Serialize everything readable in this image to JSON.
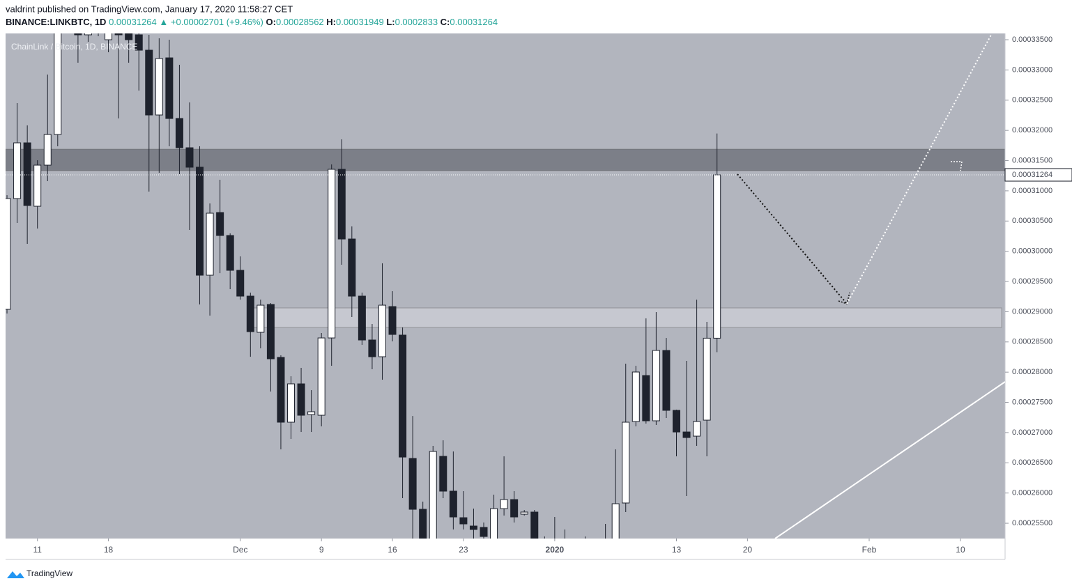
{
  "header": {
    "byline": "valdrint published on TradingView.com, January 17, 2020 11:58:27 CET",
    "symbol": "BINANCE:LINKBTC, 1D",
    "arrow": "▲",
    "change": "+0.00002701 (+9.46%)",
    "o_label": "O:",
    "h_label": "H:",
    "l_label": "L:",
    "c_label": "C:"
  },
  "footer": {
    "brand": "TradingView"
  },
  "chart_data": {
    "type": "candlestick",
    "title": "ChainLink / Bitcoin, 1D, BINANCE",
    "up_color": "#ffffff",
    "down_color": "#1e222d",
    "background": "#b2b5be",
    "open": [
      0.00029039,
      0.00030872,
      0.00031794,
      0.00030745,
      0.00031425,
      0.00031932,
      0.00033754,
      0.00033926,
      0.00033581,
      0.00033811,
      0.000335,
      0.00033811,
      0.00033696,
      0.00033581,
      0.00033327,
      0.00032255,
      0.000332,
      0.00032197,
      0.00031713,
      0.00031391,
      0.00029604,
      0.00030641,
      0.00030261,
      0.00029685,
      0.00029258,
      0.00028659,
      0.0002912,
      0.00028244,
      0.00027172,
      0.00027806,
      0.00027298,
      0.00027287,
      0.00028566,
      0.00031356,
      0.00030203,
      0.00029258,
      0.00028532,
      0.00028255,
      0.00029085,
      0.00028613,
      0.00026572,
      0.00025731,
      0.00025224,
      0.00026607,
      0.00026031,
      0.00025592,
      0.00025454,
      0.00025431,
      0.00025051,
      0.00025742,
      0.00025892,
      0.0002565,
      0.00025685,
      0.00025051,
      0.00024935,
      0.00025166,
      0.00024935,
      0.00025051,
      0.00024935,
      0.00025051,
      0.00025051,
      0.00025835,
      0.00027183,
      0.00027944,
      0.00027195,
      0.00028359,
      0.00027368,
      0.0002701,
      0.00026941,
      0.00027206,
      0.00028562
    ],
    "high": [
      0.00030929,
      0.00032451,
      0.00032082,
      0.00031506,
      0.00032924,
      0.00033984,
      0.00034157,
      0.00034099,
      0.00034042,
      0.00034042,
      0.00033984,
      0.00034042,
      0.00033926,
      0.00033811,
      0.00033581,
      0.00033523,
      0.000335,
      0.00033085,
      0.00032463,
      0.00031736,
      0.00030791,
      0.00031183,
      0.00030296,
      0.00029915,
      0.00029316,
      0.000292,
      0.00029143,
      0.00028278,
      0.00027932,
      0.00028071,
      0.00027702,
      0.00028647,
      0.00031437,
      0.00031852,
      0.00030411,
      0.00029316,
      0.00028797,
      0.000298,
      0.00029339,
      0.00028739,
      0.00027275,
      0.00025858,
      0.0002678,
      0.00026872,
      0.00026688,
      0.00026031,
      0.00025742,
      0.00025512,
      0.00025973,
      0.00026607,
      0.00026031,
      0.00025719,
      0.00025719,
      0.00025281,
      0.00025604,
      0.00025397,
      0.00025189,
      0.00025281,
      0.00025224,
      0.00025489,
      0.00026722,
      0.0002814,
      0.00028105,
      0.00028889,
      0.00028993,
      0.00028566,
      0.00027379,
      0.00028186,
      0.000292,
      0.00028832,
      0.00031949
    ],
    "low": [
      0.0002897,
      0.00030468,
      0.00030123,
      0.00030376,
      0.0003116,
      0.00031736,
      0.00033638,
      0.0003312,
      0.00033465,
      0.00033558,
      0.00033293,
      0.00032197,
      0.0003312,
      0.00032659,
      0.00030987,
      0.00031298,
      0.00031736,
      0.00031275,
      0.00030353,
      0.0002912,
      0.00028935,
      0.00029638,
      0.00029373,
      0.000292,
      0.00028255,
      0.00028394,
      0.00027679,
      0.00026722,
      0.00026895,
      0.0002701,
      0.0002701,
      0.00027103,
      0.00028105,
      0.00029777,
      0.00028912,
      0.00028451,
      0.00028048,
      0.00027875,
      0.00028509,
      0.00025915,
      0.00025247,
      0.00024935,
      0.00025166,
      0.00025915,
      0.00025397,
      0.00025397,
      0.00025247,
      0.00025224,
      0.00024935,
      0.00025627,
      0.00025512,
      0.00025627,
      0.0002482,
      0.00024705,
      0.0002482,
      0.00024705,
      0.0002482,
      0.00024705,
      0.0002482,
      0.00024935,
      0.00024935,
      0.00025685,
      0.00027103,
      0.00027149,
      0.00027126,
      0.00027241,
      0.00026607,
      0.0002595,
      0.0002678,
      0.00026607,
      0.0002833
    ],
    "close": [
      0.00030872,
      0.00031794,
      0.00030757,
      0.00031425,
      0.00031932,
      0.00033754,
      0.00033926,
      0.00033581,
      0.00033811,
      0.00033638,
      0.00033811,
      0.00033581,
      0.000335,
      0.00033327,
      0.00032255,
      0.00033189,
      0.00032197,
      0.00031713,
      0.00031391,
      0.00029604,
      0.0003063,
      0.00030261,
      0.00029685,
      0.00029258,
      0.0002867,
      0.00029108,
      0.00028221,
      0.00027172,
      0.00027806,
      0.00027287,
      0.00027345,
      0.00028566,
      0.00031356,
      0.00030203,
      0.00029258,
      0.00028532,
      0.00028255,
      0.00029108,
      0.00028624,
      0.00026595,
      0.00025731,
      0.00025051,
      0.00026688,
      0.00026031,
      0.00025604,
      0.00025489,
      0.00025397,
      0.00025281,
      0.00025742,
      0.00025892,
      0.00025604,
      0.00025685,
      0.00024935,
      0.0002482,
      0.00025166,
      0.00024935,
      0.00025051,
      0.00024935,
      0.00025108,
      0.00025224,
      0.00025823,
      0.00027172,
      0.00028002,
      0.00027195,
      0.00028359,
      0.00027368,
      0.0002701,
      0.00026918,
      0.00027183,
      0.00028562,
      0.00031264
    ],
    "zones": [
      {
        "from": 0.00031333,
        "to": 0.0003169,
        "color": "#6a6d75"
      },
      {
        "from": 0.00028739,
        "to": 0.00029062,
        "color": "#d4d6dc"
      }
    ],
    "xlim": [
      -0.14,
      98.4
    ],
    "xticks": [
      {
        "value": 3,
        "label": "11"
      },
      {
        "value": 10,
        "label": "18"
      },
      {
        "value": 23,
        "label": "Dec"
      },
      {
        "value": 31,
        "label": "9"
      },
      {
        "value": 38,
        "label": "16"
      },
      {
        "value": 45,
        "label": "23"
      },
      {
        "value": 54,
        "label": "2020"
      },
      {
        "value": 66,
        "label": "13"
      },
      {
        "value": 73,
        "label": "20"
      },
      {
        "value": 85,
        "label": "Feb"
      },
      {
        "value": 94,
        "label": "10"
      }
    ],
    "ylim": [
      0.00025247,
      0.00033604
    ],
    "yticks": [
      {
        "value": 0.000335,
        "label": "0.00033500"
      },
      {
        "value": 0.00033,
        "label": "0.00033000"
      },
      {
        "value": 0.000325,
        "label": "0.00032500"
      },
      {
        "value": 0.00032,
        "label": "0.00032000"
      },
      {
        "value": 0.000315,
        "label": "0.00031500"
      },
      {
        "value": 0.00031,
        "label": "0.00031000"
      },
      {
        "value": 0.000305,
        "label": "0.00030500"
      },
      {
        "value": 0.0003,
        "label": "0.00030000"
      },
      {
        "value": 0.000295,
        "label": "0.00029500"
      },
      {
        "value": 0.00029,
        "label": "0.00029000"
      },
      {
        "value": 0.000285,
        "label": "0.00028500"
      },
      {
        "value": 0.00028,
        "label": "0.00028000"
      },
      {
        "value": 0.000275,
        "label": "0.00027500"
      },
      {
        "value": 0.00027,
        "label": "0.00027000"
      },
      {
        "value": 0.000265,
        "label": "0.00026500"
      },
      {
        "value": 0.00026,
        "label": "0.00026000"
      },
      {
        "value": 0.000255,
        "label": "0.00025500"
      }
    ]
  }
}
